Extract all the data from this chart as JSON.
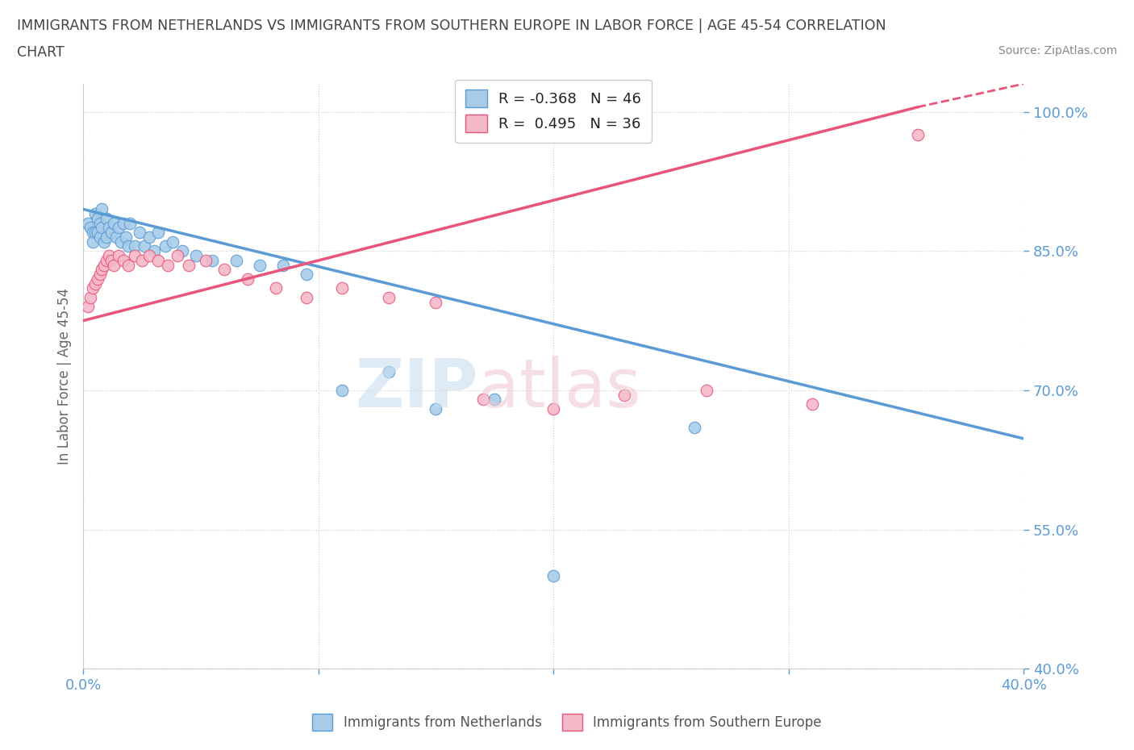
{
  "title_line1": "IMMIGRANTS FROM NETHERLANDS VS IMMIGRANTS FROM SOUTHERN EUROPE IN LABOR FORCE | AGE 45-54 CORRELATION",
  "title_line2": "CHART",
  "source": "Source: ZipAtlas.com",
  "ylabel": "In Labor Force | Age 45-54",
  "xlim": [
    0.0,
    0.4
  ],
  "ylim": [
    0.4,
    1.03
  ],
  "ytick_positions": [
    1.0,
    0.85,
    0.7,
    0.55,
    0.4
  ],
  "ytick_labels": [
    "100.0%",
    "85.0%",
    "70.0%",
    "55.0%",
    "40.0%"
  ],
  "xtick_positions": [
    0.0,
    0.1,
    0.2,
    0.3,
    0.4
  ],
  "xtick_labels": [
    "0.0%",
    "",
    "",
    "",
    "40.0%"
  ],
  "color_netherlands": "#a8cce8",
  "color_southern_europe": "#f5b8c8",
  "color_netherlands_line": "#5b9bd5",
  "color_southern_europe_line": "#e8547a",
  "R_netherlands": -0.368,
  "N_netherlands": 46,
  "R_southern_europe": 0.495,
  "N_southern_europe": 36,
  "nl_line_x0": 0.0,
  "nl_line_y0": 0.895,
  "nl_line_x1": 0.4,
  "nl_line_y1": 0.648,
  "se_line_x0": 0.0,
  "se_line_y0": 0.775,
  "se_line_x1": 0.355,
  "se_line_y1": 1.005,
  "se_line_dash_x0": 0.355,
  "se_line_dash_y0": 1.005,
  "se_line_dash_x1": 0.4,
  "se_line_dash_y1": 1.03,
  "netherlands_x": [
    0.002,
    0.003,
    0.004,
    0.004,
    0.005,
    0.005,
    0.006,
    0.006,
    0.007,
    0.007,
    0.008,
    0.008,
    0.009,
    0.01,
    0.01,
    0.011,
    0.012,
    0.013,
    0.014,
    0.015,
    0.016,
    0.017,
    0.018,
    0.019,
    0.02,
    0.022,
    0.024,
    0.026,
    0.028,
    0.03,
    0.032,
    0.035,
    0.038,
    0.042,
    0.048,
    0.055,
    0.065,
    0.075,
    0.085,
    0.095,
    0.11,
    0.13,
    0.15,
    0.175,
    0.2,
    0.26
  ],
  "netherlands_y": [
    0.88,
    0.875,
    0.87,
    0.86,
    0.89,
    0.87,
    0.885,
    0.87,
    0.88,
    0.865,
    0.895,
    0.875,
    0.86,
    0.885,
    0.865,
    0.875,
    0.87,
    0.88,
    0.865,
    0.875,
    0.86,
    0.88,
    0.865,
    0.855,
    0.88,
    0.855,
    0.87,
    0.855,
    0.865,
    0.85,
    0.87,
    0.855,
    0.86,
    0.85,
    0.845,
    0.84,
    0.84,
    0.835,
    0.835,
    0.825,
    0.7,
    0.72,
    0.68,
    0.69,
    0.5,
    0.66
  ],
  "southern_europe_x": [
    0.002,
    0.003,
    0.004,
    0.005,
    0.006,
    0.007,
    0.008,
    0.009,
    0.01,
    0.011,
    0.012,
    0.013,
    0.015,
    0.017,
    0.019,
    0.022,
    0.025,
    0.028,
    0.032,
    0.036,
    0.04,
    0.045,
    0.052,
    0.06,
    0.07,
    0.082,
    0.095,
    0.11,
    0.13,
    0.15,
    0.17,
    0.2,
    0.23,
    0.265,
    0.31,
    0.355
  ],
  "southern_europe_y": [
    0.79,
    0.8,
    0.81,
    0.815,
    0.82,
    0.825,
    0.83,
    0.835,
    0.84,
    0.845,
    0.84,
    0.835,
    0.845,
    0.84,
    0.835,
    0.845,
    0.84,
    0.845,
    0.84,
    0.835,
    0.845,
    0.835,
    0.84,
    0.83,
    0.82,
    0.81,
    0.8,
    0.81,
    0.8,
    0.795,
    0.69,
    0.68,
    0.695,
    0.7,
    0.685,
    0.975
  ]
}
